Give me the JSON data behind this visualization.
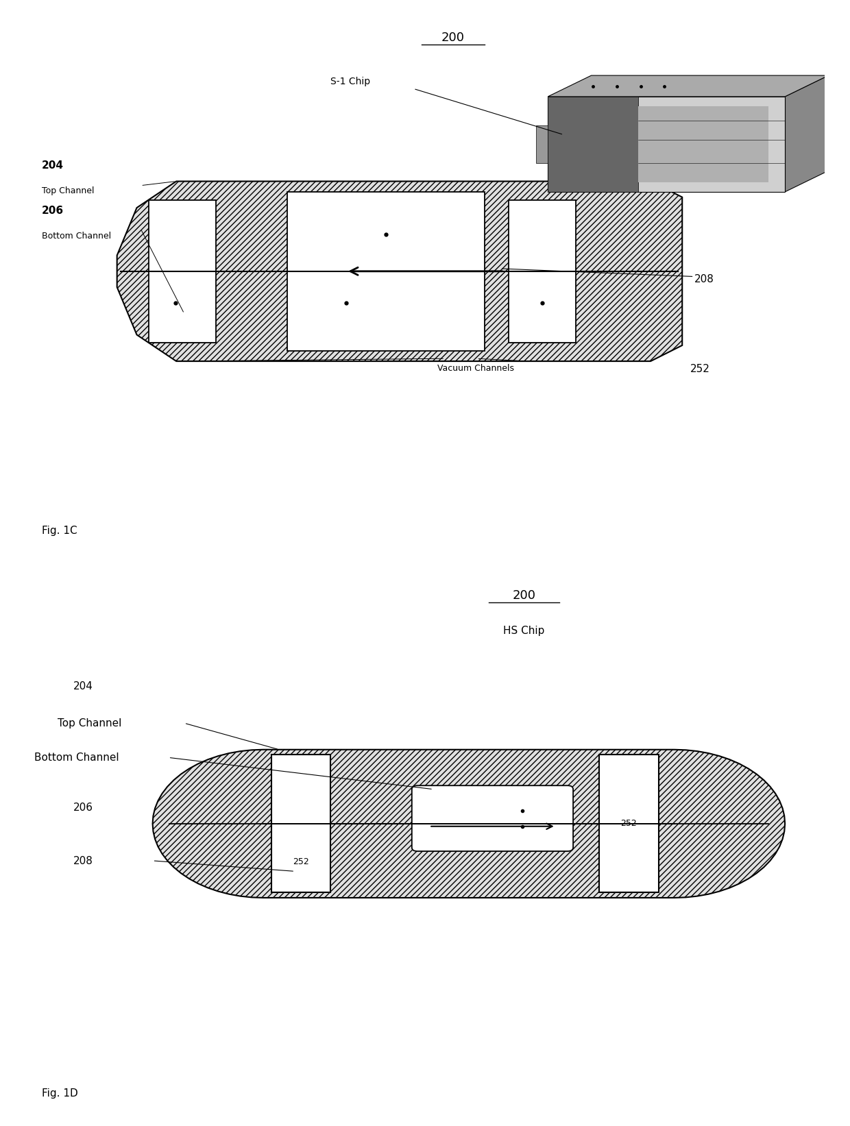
{
  "fig1c": {
    "title": "200",
    "chip_label": "S-1 Chip",
    "label_204": "204",
    "label_top_channel": "Top Channel",
    "label_206": "206",
    "label_bottom_channel": "Bottom Channel",
    "label_208": "208",
    "label_252": "252",
    "label_vacuum": "Vacuum Channels",
    "fig_label": "Fig. 1C"
  },
  "fig1d": {
    "title": "200",
    "chip_label": "HS Chip",
    "label_204": "204",
    "label_top_channel": "Top Channel",
    "label_bottom_channel": "Bottom Channel",
    "label_206": "206",
    "label_252_left": "252",
    "label_252_right": "252",
    "label_208": "208",
    "fig_label": "Fig. 1D"
  },
  "hatch_pattern": "////",
  "bg_color": "#ffffff",
  "hatch_color": "#555555",
  "line_color": "#000000"
}
